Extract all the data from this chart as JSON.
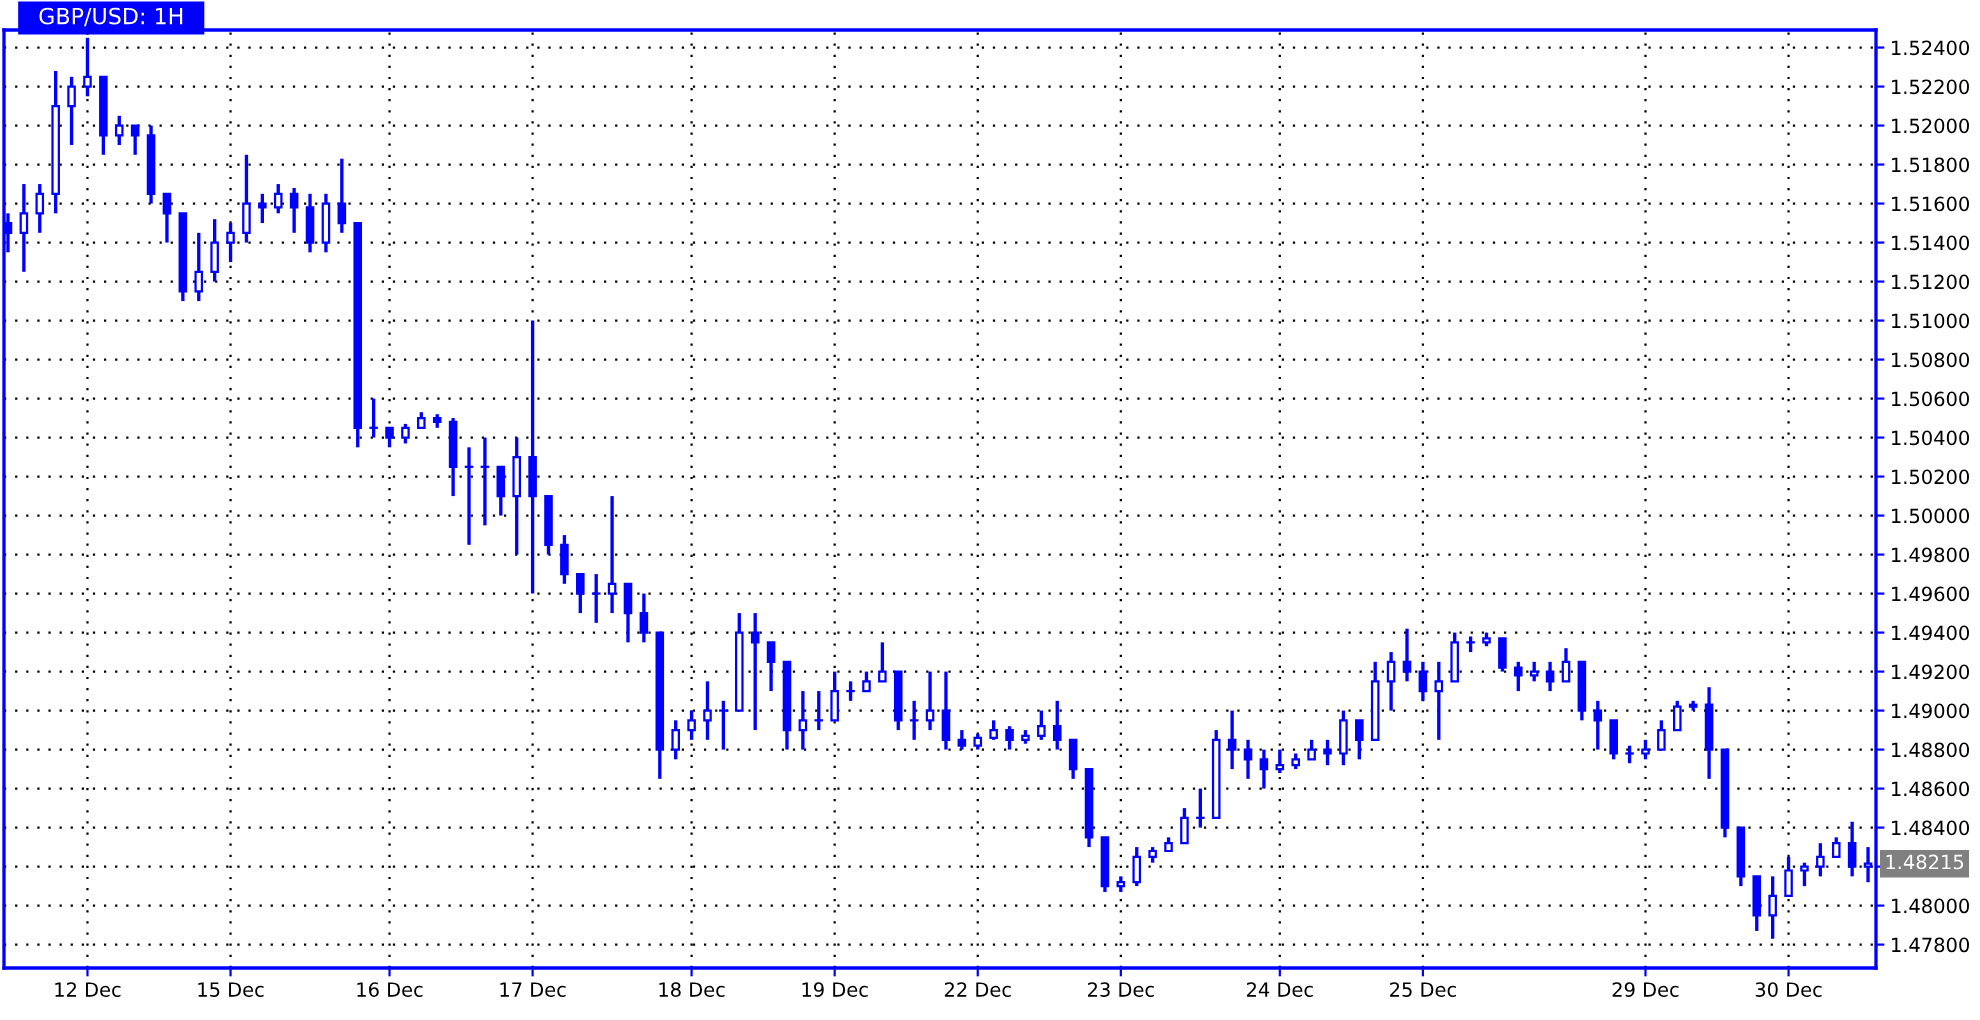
{
  "chart_data": {
    "type": "candlestick",
    "title": "GBP/USD: 1H",
    "categories": [
      null,
      null,
      null,
      null,
      null,
      "12 Dec",
      null,
      null,
      null,
      null,
      null,
      null,
      null,
      null,
      "15 Dec",
      null,
      null,
      null,
      null,
      null,
      null,
      null,
      null,
      null,
      "16 Dec",
      null,
      null,
      null,
      null,
      null,
      null,
      null,
      null,
      "17 Dec",
      null,
      null,
      null,
      null,
      null,
      null,
      null,
      null,
      null,
      "18 Dec",
      null,
      null,
      null,
      null,
      null,
      null,
      null,
      null,
      "19 Dec",
      null,
      null,
      null,
      null,
      null,
      null,
      null,
      null,
      "22 Dec",
      null,
      null,
      null,
      null,
      null,
      null,
      null,
      null,
      "23 Dec",
      null,
      null,
      null,
      null,
      null,
      null,
      null,
      null,
      null,
      "24 Dec",
      null,
      null,
      null,
      null,
      null,
      null,
      null,
      null,
      "25 Dec",
      null,
      null,
      null,
      null,
      null,
      null,
      null,
      null,
      null,
      null,
      null,
      null,
      null,
      "29 Dec",
      null,
      null,
      null,
      null,
      null,
      null,
      null,
      null,
      "30 Dec",
      null,
      null,
      null,
      null,
      null
    ],
    "ohlc": [
      [
        1.515,
        1.5155,
        1.5135,
        1.5145
      ],
      [
        1.5145,
        1.517,
        1.5125,
        1.5155
      ],
      [
        1.5155,
        1.517,
        1.5145,
        1.5165
      ],
      [
        1.5165,
        1.5228,
        1.5155,
        1.521
      ],
      [
        1.521,
        1.5225,
        1.519,
        1.522
      ],
      [
        1.522,
        1.5245,
        1.5215,
        1.5225
      ],
      [
        1.5225,
        1.5225,
        1.5185,
        1.5195
      ],
      [
        1.5195,
        1.5205,
        1.519,
        1.52
      ],
      [
        1.52,
        1.52,
        1.5185,
        1.5195
      ],
      [
        1.5195,
        1.52,
        1.516,
        1.5165
      ],
      [
        1.5165,
        1.5165,
        1.514,
        1.5155
      ],
      [
        1.5155,
        1.5155,
        1.511,
        1.5115
      ],
      [
        1.5115,
        1.5145,
        1.511,
        1.5125
      ],
      [
        1.5125,
        1.5152,
        1.512,
        1.514
      ],
      [
        1.514,
        1.515,
        1.513,
        1.5145
      ],
      [
        1.5145,
        1.5185,
        1.514,
        1.516
      ],
      [
        1.516,
        1.5165,
        1.515,
        1.5158
      ],
      [
        1.5158,
        1.517,
        1.5155,
        1.5165
      ],
      [
        1.5165,
        1.5168,
        1.5145,
        1.5158
      ],
      [
        1.5158,
        1.5165,
        1.5135,
        1.514
      ],
      [
        1.514,
        1.5165,
        1.5135,
        1.516
      ],
      [
        1.516,
        1.5183,
        1.5145,
        1.515
      ],
      [
        1.515,
        1.515,
        1.5035,
        1.5045
      ],
      [
        1.5045,
        1.506,
        1.504,
        1.5045
      ],
      [
        1.5045,
        1.5045,
        1.5035,
        1.504
      ],
      [
        1.504,
        1.5047,
        1.5037,
        1.5045
      ],
      [
        1.5045,
        1.5053,
        1.5045,
        1.505
      ],
      [
        1.505,
        1.5052,
        1.5045,
        1.5048
      ],
      [
        1.5048,
        1.505,
        1.501,
        1.5025
      ],
      [
        1.5025,
        1.5035,
        1.4985,
        1.5025
      ],
      [
        1.5025,
        1.504,
        1.4995,
        1.5025
      ],
      [
        1.5025,
        1.5025,
        1.5,
        1.501
      ],
      [
        1.501,
        1.504,
        1.498,
        1.503
      ],
      [
        1.503,
        1.51,
        1.496,
        1.501
      ],
      [
        1.501,
        1.501,
        1.498,
        1.4985
      ],
      [
        1.4985,
        1.499,
        1.4965,
        1.497
      ],
      [
        1.497,
        1.497,
        1.495,
        1.496
      ],
      [
        1.496,
        1.497,
        1.4945,
        1.496
      ],
      [
        1.496,
        1.501,
        1.495,
        1.4965
      ],
      [
        1.4965,
        1.4965,
        1.4935,
        1.495
      ],
      [
        1.495,
        1.496,
        1.4935,
        1.494
      ],
      [
        1.494,
        1.494,
        1.4865,
        1.488
      ],
      [
        1.488,
        1.4895,
        1.4875,
        1.489
      ],
      [
        1.489,
        1.49,
        1.4885,
        1.4895
      ],
      [
        1.4895,
        1.4915,
        1.4885,
        1.49
      ],
      [
        1.49,
        1.4905,
        1.488,
        1.49
      ],
      [
        1.49,
        1.495,
        1.49,
        1.494
      ],
      [
        1.494,
        1.495,
        1.489,
        1.4935
      ],
      [
        1.4935,
        1.4935,
        1.491,
        1.4925
      ],
      [
        1.4925,
        1.4925,
        1.488,
        1.489
      ],
      [
        1.489,
        1.491,
        1.488,
        1.4895
      ],
      [
        1.4895,
        1.491,
        1.489,
        1.4895
      ],
      [
        1.4895,
        1.492,
        1.4895,
        1.491
      ],
      [
        1.491,
        1.4915,
        1.4905,
        1.491
      ],
      [
        1.491,
        1.492,
        1.491,
        1.4915
      ],
      [
        1.4915,
        1.4935,
        1.4915,
        1.492
      ],
      [
        1.492,
        1.492,
        1.489,
        1.4895
      ],
      [
        1.4895,
        1.4905,
        1.4885,
        1.4895
      ],
      [
        1.4895,
        1.492,
        1.489,
        1.49
      ],
      [
        1.49,
        1.492,
        1.488,
        1.4885
      ],
      [
        1.4885,
        1.489,
        1.488,
        1.4882
      ],
      [
        1.4882,
        1.4888,
        1.488,
        1.4886
      ],
      [
        1.4886,
        1.4895,
        1.4885,
        1.489
      ],
      [
        1.489,
        1.4892,
        1.488,
        1.4885
      ],
      [
        1.4885,
        1.489,
        1.4883,
        1.4887
      ],
      [
        1.4887,
        1.49,
        1.4885,
        1.4892
      ],
      [
        1.4892,
        1.4905,
        1.488,
        1.4885
      ],
      [
        1.4885,
        1.4885,
        1.4865,
        1.487
      ],
      [
        1.487,
        1.487,
        1.483,
        1.4835
      ],
      [
        1.4835,
        1.4835,
        1.4807,
        1.481
      ],
      [
        1.481,
        1.4815,
        1.4807,
        1.4812
      ],
      [
        1.4812,
        1.483,
        1.481,
        1.4825
      ],
      [
        1.4825,
        1.483,
        1.4822,
        1.4828
      ],
      [
        1.4828,
        1.4835,
        1.4828,
        1.4832
      ],
      [
        1.4832,
        1.485,
        1.4832,
        1.4845
      ],
      [
        1.4845,
        1.486,
        1.484,
        1.4845
      ],
      [
        1.4845,
        1.489,
        1.4845,
        1.4885
      ],
      [
        1.4885,
        1.49,
        1.487,
        1.488
      ],
      [
        1.488,
        1.4885,
        1.4865,
        1.4875
      ],
      [
        1.4875,
        1.488,
        1.486,
        1.487
      ],
      [
        1.487,
        1.488,
        1.4868,
        1.4872
      ],
      [
        1.4872,
        1.4878,
        1.487,
        1.4875
      ],
      [
        1.4875,
        1.4885,
        1.4875,
        1.488
      ],
      [
        1.488,
        1.4885,
        1.4872,
        1.4878
      ],
      [
        1.4878,
        1.49,
        1.4872,
        1.4895
      ],
      [
        1.4895,
        1.4895,
        1.4875,
        1.4885
      ],
      [
        1.4885,
        1.4925,
        1.4885,
        1.4915
      ],
      [
        1.4915,
        1.493,
        1.49,
        1.4925
      ],
      [
        1.4925,
        1.4942,
        1.4915,
        1.492
      ],
      [
        1.492,
        1.4925,
        1.4905,
        1.491
      ],
      [
        1.491,
        1.4925,
        1.4885,
        1.4915
      ],
      [
        1.4915,
        1.494,
        1.4915,
        1.4935
      ],
      [
        1.4935,
        1.4938,
        1.493,
        1.4935
      ],
      [
        1.4935,
        1.494,
        1.4933,
        1.4937
      ],
      [
        1.4937,
        1.4937,
        1.492,
        1.4922
      ],
      [
        1.4922,
        1.4925,
        1.491,
        1.4918
      ],
      [
        1.4918,
        1.4925,
        1.4915,
        1.492
      ],
      [
        1.492,
        1.4925,
        1.491,
        1.4915
      ],
      [
        1.4915,
        1.4932,
        1.4915,
        1.4925
      ],
      [
        1.4925,
        1.4925,
        1.4895,
        1.49
      ],
      [
        1.49,
        1.4905,
        1.488,
        1.4895
      ],
      [
        1.4895,
        1.4895,
        1.4875,
        1.4878
      ],
      [
        1.4878,
        1.4882,
        1.4873,
        1.4878
      ],
      [
        1.4878,
        1.4885,
        1.4875,
        1.488
      ],
      [
        1.488,
        1.4895,
        1.488,
        1.489
      ],
      [
        1.489,
        1.4905,
        1.489,
        1.4902
      ],
      [
        1.4902,
        1.4905,
        1.49,
        1.4903
      ],
      [
        1.4903,
        1.4912,
        1.4865,
        1.488
      ],
      [
        1.488,
        1.488,
        1.4835,
        1.484
      ],
      [
        1.484,
        1.484,
        1.481,
        1.4815
      ],
      [
        1.4815,
        1.4815,
        1.4787,
        1.4795
      ],
      [
        1.4795,
        1.4815,
        1.4783,
        1.4805
      ],
      [
        1.4805,
        1.4825,
        1.4805,
        1.4818
      ],
      [
        1.4818,
        1.4822,
        1.481,
        1.482
      ],
      [
        1.482,
        1.4832,
        1.4815,
        1.4825
      ],
      [
        1.4825,
        1.4835,
        1.4825,
        1.4832
      ],
      [
        1.4832,
        1.4843,
        1.4815,
        1.482
      ],
      [
        1.482,
        1.483,
        1.4812,
        1.48215
      ]
    ],
    "color": "#0000ff",
    "ylim": [
      1.4768,
      1.5249
    ],
    "yticks": [
      {
        "value": 1.478,
        "label": "1.47800"
      },
      {
        "value": 1.48,
        "label": "1.48000"
      },
      {
        "value": 1.482,
        "label": null
      },
      {
        "value": 1.484,
        "label": "1.48400"
      },
      {
        "value": 1.486,
        "label": "1.48600"
      },
      {
        "value": 1.488,
        "label": "1.48800"
      },
      {
        "value": 1.49,
        "label": "1.49000"
      },
      {
        "value": 1.492,
        "label": "1.49200"
      },
      {
        "value": 1.494,
        "label": "1.49400"
      },
      {
        "value": 1.496,
        "label": "1.49600"
      },
      {
        "value": 1.498,
        "label": "1.49800"
      },
      {
        "value": 1.5,
        "label": "1.50000"
      },
      {
        "value": 1.502,
        "label": "1.50200"
      },
      {
        "value": 1.504,
        "label": "1.50400"
      },
      {
        "value": 1.506,
        "label": "1.50600"
      },
      {
        "value": 1.508,
        "label": "1.50800"
      },
      {
        "value": 1.51,
        "label": "1.51000"
      },
      {
        "value": 1.512,
        "label": "1.51200"
      },
      {
        "value": 1.514,
        "label": "1.51400"
      },
      {
        "value": 1.516,
        "label": "1.51600"
      },
      {
        "value": 1.518,
        "label": "1.51800"
      },
      {
        "value": 1.52,
        "label": "1.52000"
      },
      {
        "value": 1.522,
        "label": "1.52200"
      },
      {
        "value": 1.524,
        "label": "1.52400"
      }
    ],
    "grid": true,
    "annotations": [
      "1.48215"
    ]
  }
}
